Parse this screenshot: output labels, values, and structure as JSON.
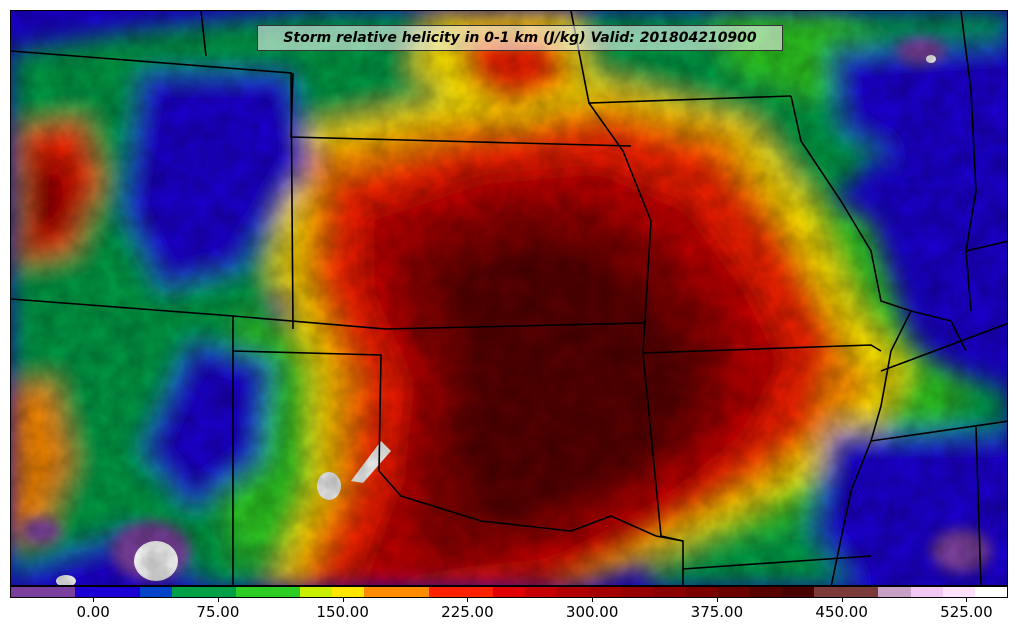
{
  "title": "Storm relative helicity in 0-1 km (J/kg) Valid: 201804210900",
  "colorbar": {
    "colors": [
      "#7b3f9e",
      "#7b3f9e",
      "#1b00d6",
      "#1b00d6",
      "#0044c9",
      "#00a046",
      "#00a046",
      "#2dcc24",
      "#2dcc24",
      "#c9ef00",
      "#ffe600",
      "#ff8c00",
      "#ff8c00",
      "#ff2200",
      "#ff2200",
      "#e00000",
      "#c40000",
      "#b00000",
      "#a40000",
      "#960000",
      "#8a0000",
      "#7a0000",
      "#6a0000",
      "#580000",
      "#480000",
      "#7a3a3a",
      "#7a3a3a",
      "#c7a0c7",
      "#f4c8f4",
      "#ffe0ff",
      "#ffffff"
    ],
    "tick_labels": [
      "0.00",
      "75.00",
      "150.00",
      "225.00",
      "300.00",
      "375.00",
      "450.00",
      "525.00"
    ],
    "tick_values": [
      0,
      75,
      150,
      225,
      300,
      375,
      450,
      525
    ],
    "vmin": -50,
    "vmax": 550
  },
  "legend_palette": {
    "neg": "#7b3f9e",
    "blue": "#1b00d6",
    "green": "#00a046",
    "lime": "#2dcc24",
    "yellow": "#ffe600",
    "orange": "#ff8c00",
    "red": "#ff2200",
    "darkred": "#a00000",
    "maroon": "#5a0000",
    "white": "#ffffff"
  }
}
